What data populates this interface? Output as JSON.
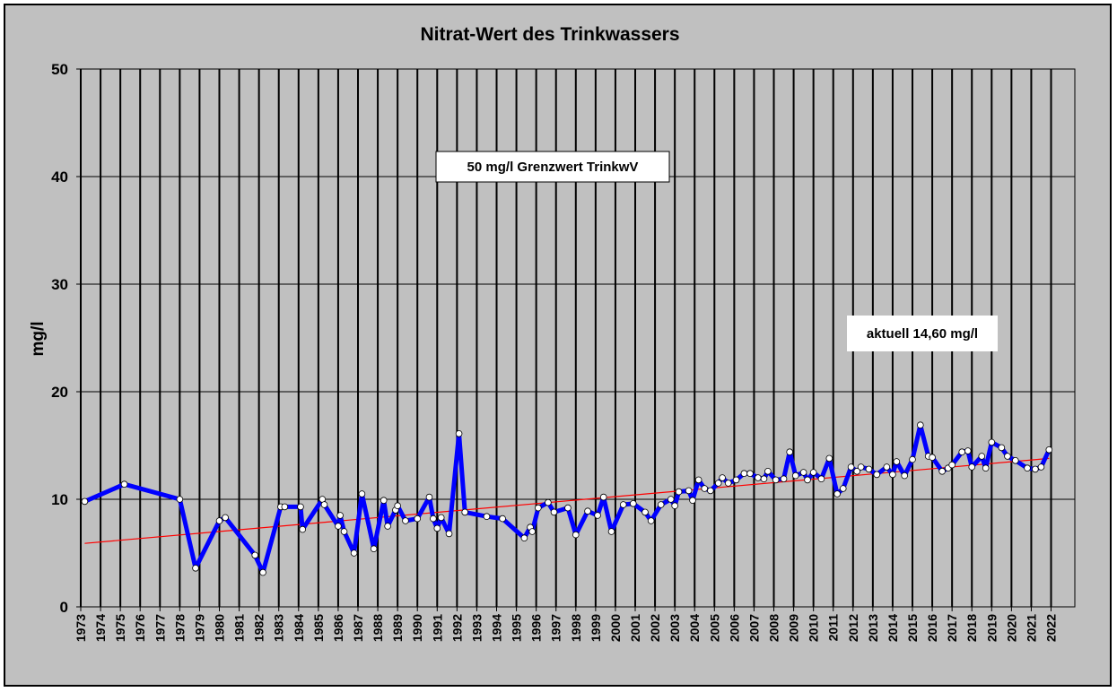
{
  "chart_data": {
    "type": "line",
    "title": "Nitrat-Wert des Trinkwassers",
    "ylabel": "mg/l",
    "xlabel": "",
    "ylim": [
      0,
      50
    ],
    "yticks": [
      0,
      10,
      20,
      30,
      40,
      50
    ],
    "xlim": [
      1973,
      2023.2
    ],
    "x_tick_labels": [
      "1973",
      "1974",
      "1975",
      "1976",
      "1977",
      "1978",
      "1979",
      "1980",
      "1981",
      "1982",
      "1983",
      "1984",
      "1985",
      "1986",
      "1987",
      "1988",
      "1989",
      "1990",
      "1991",
      "1992",
      "1993",
      "1994",
      "1995",
      "1996",
      "1997",
      "1998",
      "1999",
      "2000",
      "2001",
      "2002",
      "2003",
      "2004",
      "2005",
      "2006",
      "2007",
      "2008",
      "2009",
      "2010",
      "2011",
      "2012",
      "2013",
      "2014",
      "2015",
      "2016",
      "2017",
      "2018",
      "2019",
      "2020",
      "2021",
      "2022"
    ],
    "grid": "vertical and horizontal",
    "annotations": [
      "50 mg/l  Grenzwert TrinkwV",
      "aktuell 14,60 mg/l"
    ],
    "colors": {
      "series": "#0000ff",
      "trend": "#ff0000",
      "marker_fill": "#ffffff",
      "background": "#c0c0c0"
    },
    "series": [
      {
        "points": [
          [
            1973.2,
            9.8
          ],
          [
            1975.2,
            11.4
          ],
          [
            1978.0,
            10.0
          ],
          [
            1978.8,
            3.6
          ],
          [
            1980.0,
            8.0
          ],
          [
            1980.3,
            8.3
          ],
          [
            1981.8,
            4.8
          ],
          [
            1982.2,
            3.2
          ],
          [
            1983.1,
            9.3
          ],
          [
            1983.3,
            9.3
          ],
          [
            1984.1,
            9.3
          ],
          [
            1984.2,
            7.2
          ],
          [
            1985.2,
            10.0
          ],
          [
            1985.3,
            9.5
          ],
          [
            1986.0,
            7.5
          ],
          [
            1986.1,
            8.5
          ],
          [
            1986.3,
            7.0
          ],
          [
            1986.8,
            5.0
          ],
          [
            1987.2,
            10.5
          ],
          [
            1987.8,
            5.4
          ],
          [
            1988.3,
            9.9
          ],
          [
            1988.5,
            7.5
          ],
          [
            1988.9,
            9.0
          ],
          [
            1989.0,
            9.4
          ],
          [
            1989.4,
            8.0
          ],
          [
            1990.0,
            8.2
          ],
          [
            1990.6,
            10.2
          ],
          [
            1990.8,
            8.2
          ],
          [
            1991.0,
            7.3
          ],
          [
            1991.2,
            8.3
          ],
          [
            1991.6,
            6.8
          ],
          [
            1992.1,
            16.1
          ],
          [
            1992.4,
            8.8
          ],
          [
            1993.5,
            8.4
          ],
          [
            1994.3,
            8.2
          ],
          [
            1995.4,
            6.4
          ],
          [
            1995.7,
            7.4
          ],
          [
            1995.8,
            7.0
          ],
          [
            1996.1,
            9.2
          ],
          [
            1996.6,
            9.7
          ],
          [
            1996.9,
            8.8
          ],
          [
            1997.6,
            9.2
          ],
          [
            1998.0,
            6.7
          ],
          [
            1998.6,
            8.9
          ],
          [
            1999.1,
            8.5
          ],
          [
            1999.4,
            10.2
          ],
          [
            1999.8,
            7.0
          ],
          [
            2000.4,
            9.5
          ],
          [
            2000.9,
            9.6
          ],
          [
            2001.5,
            8.8
          ],
          [
            2001.8,
            8.0
          ],
          [
            2002.3,
            9.5
          ],
          [
            2002.8,
            10.0
          ],
          [
            2003.0,
            9.4
          ],
          [
            2003.2,
            10.7
          ],
          [
            2003.7,
            10.8
          ],
          [
            2003.9,
            9.9
          ],
          [
            2004.2,
            11.8
          ],
          [
            2004.5,
            11.0
          ],
          [
            2004.8,
            10.8
          ],
          [
            2005.2,
            11.5
          ],
          [
            2005.4,
            12.0
          ],
          [
            2005.7,
            11.5
          ],
          [
            2006.1,
            11.8
          ],
          [
            2006.5,
            12.4
          ],
          [
            2006.8,
            12.4
          ],
          [
            2007.2,
            12.0
          ],
          [
            2007.5,
            11.9
          ],
          [
            2007.7,
            12.6
          ],
          [
            2008.1,
            11.8
          ],
          [
            2008.5,
            11.9
          ],
          [
            2008.8,
            14.4
          ],
          [
            2009.1,
            12.2
          ],
          [
            2009.5,
            12.5
          ],
          [
            2009.7,
            11.8
          ],
          [
            2010.0,
            12.5
          ],
          [
            2010.4,
            11.9
          ],
          [
            2010.8,
            13.8
          ],
          [
            2011.2,
            10.5
          ],
          [
            2011.5,
            11.0
          ],
          [
            2011.9,
            13.0
          ],
          [
            2012.2,
            12.6
          ],
          [
            2012.4,
            13.0
          ],
          [
            2012.8,
            12.8
          ],
          [
            2013.2,
            12.3
          ],
          [
            2013.7,
            13.0
          ],
          [
            2014.0,
            12.3
          ],
          [
            2014.2,
            13.5
          ],
          [
            2014.6,
            12.2
          ],
          [
            2015.0,
            13.7
          ],
          [
            2015.4,
            16.9
          ],
          [
            2015.8,
            14.0
          ],
          [
            2016.0,
            13.9
          ],
          [
            2016.5,
            12.6
          ],
          [
            2016.8,
            12.9
          ],
          [
            2017.0,
            13.2
          ],
          [
            2017.5,
            14.4
          ],
          [
            2017.8,
            14.5
          ],
          [
            2018.0,
            13.0
          ],
          [
            2018.5,
            14.0
          ],
          [
            2018.7,
            12.9
          ],
          [
            2019.0,
            15.3
          ],
          [
            2019.5,
            14.8
          ],
          [
            2019.8,
            14.0
          ],
          [
            2020.2,
            13.6
          ],
          [
            2020.8,
            12.9
          ],
          [
            2021.2,
            12.8
          ],
          [
            2021.5,
            13.0
          ],
          [
            2021.9,
            14.6
          ]
        ]
      }
    ],
    "trendline": {
      "x": [
        1973.2,
        2021.9
      ],
      "y": [
        5.9,
        13.8
      ]
    }
  }
}
